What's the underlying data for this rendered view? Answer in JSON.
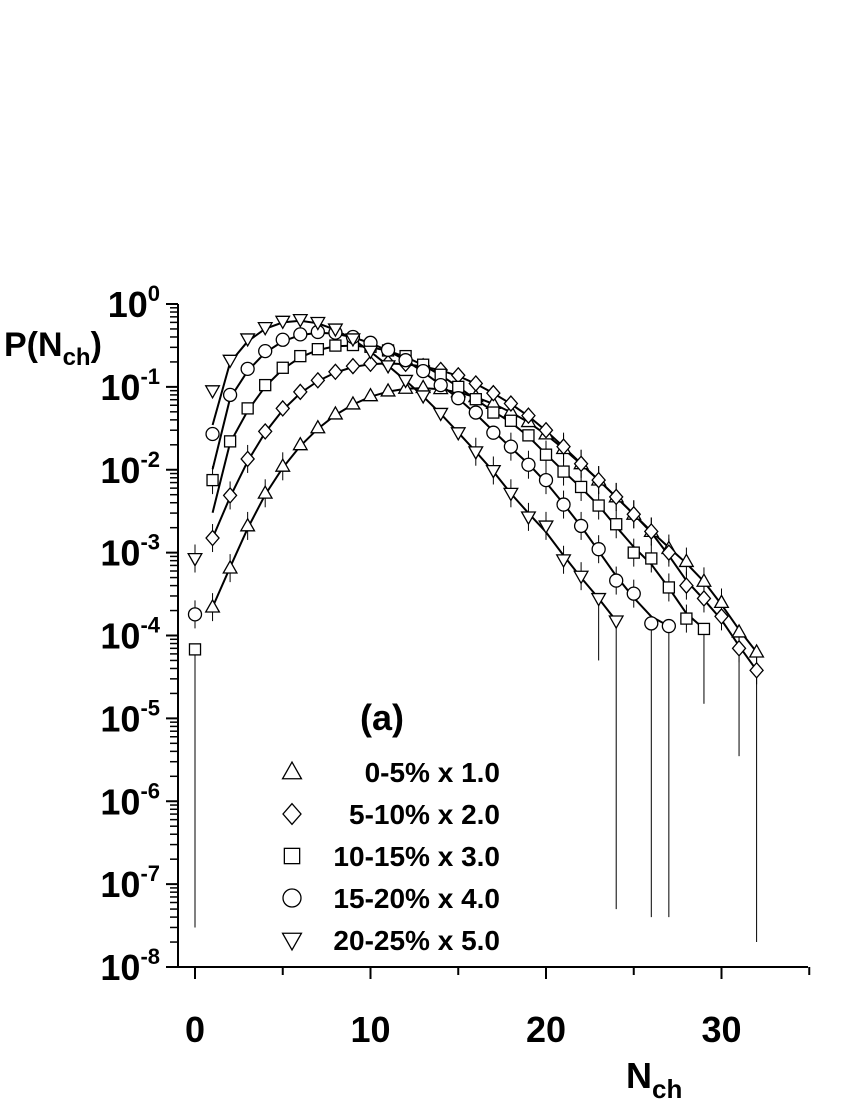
{
  "chart_data": {
    "type": "scatter",
    "ylabel": "P(N",
    "ylabel_sub": "ch",
    "ylabel_tail": ")",
    "xlabel": "N",
    "xlabel_sub": "ch",
    "panel_label": "(a)",
    "yscale": "log",
    "xlim": [
      -1,
      35
    ],
    "ylim": [
      1e-08,
      1
    ],
    "x_ticks": [
      {
        "value": 0,
        "label": "0"
      },
      {
        "value": 10,
        "label": "10"
      },
      {
        "value": 20,
        "label": "20"
      },
      {
        "value": 30,
        "label": "30"
      }
    ],
    "y_ticks": [
      {
        "exp": 0,
        "base": "10",
        "sup": "0"
      },
      {
        "exp": -1,
        "base": "10",
        "sup": "-1"
      },
      {
        "exp": -2,
        "base": "10",
        "sup": "-2"
      },
      {
        "exp": -3,
        "base": "10",
        "sup": "-3"
      },
      {
        "exp": -4,
        "base": "10",
        "sup": "-4"
      },
      {
        "exp": -5,
        "base": "10",
        "sup": "-5"
      },
      {
        "exp": -6,
        "base": "10",
        "sup": "-6"
      },
      {
        "exp": -7,
        "base": "10",
        "sup": "-7"
      },
      {
        "exp": -8,
        "base": "10",
        "sup": "-8"
      }
    ],
    "series": [
      {
        "name": "0-5% x 1.0",
        "marker": "triangle-up",
        "x": [
          1,
          2,
          3,
          4,
          5,
          6,
          7,
          8,
          9,
          10,
          11,
          12,
          13,
          14,
          15,
          16,
          17,
          18,
          19,
          20,
          21,
          22,
          23,
          24,
          25,
          26,
          27,
          28,
          29,
          30,
          31,
          32
        ],
        "y": [
          0.00022,
          0.00065,
          0.0021,
          0.0052,
          0.011,
          0.02,
          0.032,
          0.047,
          0.062,
          0.078,
          0.089,
          0.096,
          0.098,
          0.095,
          0.087,
          0.076,
          0.063,
          0.05,
          0.038,
          0.027,
          0.018,
          0.0118,
          0.0075,
          0.0047,
          0.0029,
          0.0018,
          0.00112,
          0.00078,
          0.00045,
          0.00025,
          0.00011,
          6.3e-05
        ],
        "yerr_low": {
          "31": 3.5e-06,
          "32": 2e-08
        },
        "fit_x": [
          1,
          32
        ],
        "fit_peak_x": 12.5
      },
      {
        "name": "5-10% x 2.0",
        "marker": "diamond",
        "x": [
          1,
          2,
          3,
          4,
          5,
          6,
          7,
          8,
          9,
          10,
          11,
          12,
          13,
          14,
          15,
          16,
          17,
          18,
          19,
          20,
          21,
          22,
          23,
          24,
          25,
          26,
          27,
          28,
          29,
          30,
          31,
          32
        ],
        "y": [
          0.0015,
          0.0049,
          0.0135,
          0.029,
          0.055,
          0.087,
          0.12,
          0.152,
          0.178,
          0.19,
          0.194,
          0.19,
          0.178,
          0.16,
          0.138,
          0.11,
          0.084,
          0.063,
          0.045,
          0.03,
          0.019,
          0.0118,
          0.0075,
          0.0047,
          0.0029,
          0.0018,
          0.001,
          0.0004,
          0.00028,
          0.00017,
          7e-05,
          3.8e-05
        ],
        "yerr_low": {},
        "fit_x": [
          1,
          32
        ],
        "fit_peak_x": 10.5
      },
      {
        "name": "10-15% x 3.0",
        "marker": "square",
        "x": [
          0,
          1,
          2,
          3,
          4,
          5,
          6,
          7,
          8,
          9,
          10,
          11,
          12,
          13,
          14,
          15,
          16,
          17,
          18,
          19,
          20,
          21,
          22,
          23,
          24,
          25,
          26,
          27,
          28,
          29
        ],
        "y": [
          6.8e-05,
          0.0075,
          0.022,
          0.055,
          0.105,
          0.17,
          0.235,
          0.285,
          0.315,
          0.32,
          0.305,
          0.275,
          0.235,
          0.185,
          0.14,
          0.1,
          0.071,
          0.049,
          0.039,
          0.026,
          0.0152,
          0.0095,
          0.0062,
          0.0037,
          0.0022,
          0.001,
          0.00085,
          0.00038,
          0.00016,
          0.00012
        ],
        "yerr_low": {
          "0": 3e-08,
          "29": 1.5e-05
        },
        "fit_x": [
          0,
          29
        ],
        "fit_peak_x": 9
      },
      {
        "name": "15-20% x 4.0",
        "marker": "circle",
        "x": [
          0,
          1,
          2,
          3,
          4,
          5,
          6,
          7,
          8,
          9,
          10,
          11,
          12,
          13,
          14,
          15,
          16,
          17,
          18,
          19,
          20,
          21,
          22,
          23,
          24,
          25,
          26,
          27
        ],
        "y": [
          0.00018,
          0.027,
          0.08,
          0.165,
          0.27,
          0.37,
          0.43,
          0.46,
          0.45,
          0.4,
          0.34,
          0.28,
          0.21,
          0.155,
          0.105,
          0.073,
          0.049,
          0.028,
          0.019,
          0.0115,
          0.0075,
          0.0038,
          0.0021,
          0.0011,
          0.00046,
          0.00032,
          0.00014,
          0.00013
        ],
        "yerr_low": {
          "26": 4e-08,
          "27": 4e-08
        },
        "fit_x": [
          0,
          27
        ],
        "fit_peak_x": 7
      },
      {
        "name": "20-25% x 5.0",
        "marker": "triangle-down",
        "x": [
          0,
          1,
          2,
          3,
          4,
          5,
          6,
          7,
          8,
          9,
          10,
          11,
          12,
          13,
          14,
          15,
          16,
          17,
          18,
          19,
          20,
          21,
          22,
          23,
          24
        ],
        "y": [
          0.00085,
          0.09,
          0.21,
          0.38,
          0.52,
          0.62,
          0.65,
          0.6,
          0.5,
          0.38,
          0.27,
          0.18,
          0.12,
          0.078,
          0.048,
          0.028,
          0.0165,
          0.0098,
          0.0052,
          0.0027,
          0.0021,
          0.00082,
          0.00052,
          0.00028,
          0.00015
        ],
        "yerr_low": {
          "23": 5e-05,
          "24": 5e-08
        },
        "fit_x": [
          0,
          24
        ],
        "fit_peak_x": 6
      }
    ]
  }
}
